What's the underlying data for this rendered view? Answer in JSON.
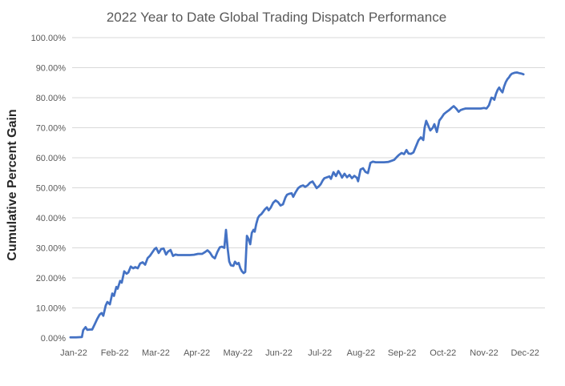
{
  "chart_data": {
    "type": "line",
    "title": "2022 Year to Date Global Trading Dispatch Performance",
    "ylabel": "Cumulative Percent Gain",
    "xlabel": "",
    "legend": "none",
    "grid": "horizontal-only",
    "ylim": [
      0,
      100
    ],
    "y_tick_labels": [
      "0.00%",
      "10.00%",
      "20.00%",
      "30.00%",
      "40.00%",
      "50.00%",
      "60.00%",
      "70.00%",
      "80.00%",
      "90.00%",
      "100.00%"
    ],
    "x_tick_labels": [
      "Jan-22",
      "Feb-22",
      "Mar-22",
      "Apr-22",
      "May-22",
      "Jun-22",
      "Jul-22",
      "Aug-22",
      "Sep-22",
      "Oct-22",
      "Nov-22",
      "Dec-22"
    ],
    "colors": {
      "line": "#4472C4",
      "gridline": "#D9D9D9",
      "tick_text": "#595959",
      "title_text": "#595959",
      "axis_title_text": "#262626",
      "background": "#ffffff"
    },
    "series": [
      {
        "name": "Cumulative Percent Gain",
        "x_unit": "months from Jan-22 tick",
        "y_unit": "percent",
        "points": [
          [
            -0.08,
            0.2
          ],
          [
            0.06,
            0.2
          ],
          [
            0.2,
            0.3
          ],
          [
            0.23,
            2.6
          ],
          [
            0.29,
            3.6
          ],
          [
            0.33,
            2.7
          ],
          [
            0.39,
            2.8
          ],
          [
            0.45,
            2.8
          ],
          [
            0.51,
            4.5
          ],
          [
            0.57,
            6.3
          ],
          [
            0.63,
            7.8
          ],
          [
            0.68,
            8.3
          ],
          [
            0.72,
            7.4
          ],
          [
            0.78,
            10.8
          ],
          [
            0.82,
            12.0
          ],
          [
            0.88,
            11.2
          ],
          [
            0.94,
            14.8
          ],
          [
            0.98,
            14.0
          ],
          [
            1.04,
            17.0
          ],
          [
            1.07,
            16.4
          ],
          [
            1.13,
            19.0
          ],
          [
            1.17,
            18.4
          ],
          [
            1.23,
            22.2
          ],
          [
            1.29,
            21.4
          ],
          [
            1.33,
            21.8
          ],
          [
            1.39,
            23.8
          ],
          [
            1.45,
            23.2
          ],
          [
            1.5,
            23.6
          ],
          [
            1.56,
            23.2
          ],
          [
            1.62,
            24.8
          ],
          [
            1.68,
            25.2
          ],
          [
            1.74,
            24.4
          ],
          [
            1.8,
            26.6
          ],
          [
            1.86,
            27.4
          ],
          [
            1.91,
            28.4
          ],
          [
            1.97,
            29.6
          ],
          [
            2.01,
            30.0
          ],
          [
            2.07,
            28.3
          ],
          [
            2.13,
            29.6
          ],
          [
            2.19,
            29.8
          ],
          [
            2.25,
            27.8
          ],
          [
            2.3,
            28.8
          ],
          [
            2.36,
            29.3
          ],
          [
            2.42,
            27.3
          ],
          [
            2.48,
            27.8
          ],
          [
            2.54,
            27.6
          ],
          [
            2.64,
            27.6
          ],
          [
            2.73,
            27.6
          ],
          [
            2.83,
            27.6
          ],
          [
            2.93,
            27.7
          ],
          [
            3.03,
            28.0
          ],
          [
            3.13,
            28.0
          ],
          [
            3.2,
            28.6
          ],
          [
            3.26,
            29.2
          ],
          [
            3.32,
            28.4
          ],
          [
            3.38,
            27.1
          ],
          [
            3.44,
            26.5
          ],
          [
            3.5,
            28.6
          ],
          [
            3.56,
            30.2
          ],
          [
            3.61,
            30.4
          ],
          [
            3.67,
            30.0
          ],
          [
            3.71,
            36.0
          ],
          [
            3.75,
            30.0
          ],
          [
            3.79,
            25.5
          ],
          [
            3.83,
            24.2
          ],
          [
            3.89,
            24.0
          ],
          [
            3.93,
            25.4
          ],
          [
            3.98,
            24.6
          ],
          [
            4.02,
            25.0
          ],
          [
            4.06,
            23.2
          ],
          [
            4.1,
            22.2
          ],
          [
            4.14,
            21.6
          ],
          [
            4.18,
            22.0
          ],
          [
            4.22,
            34.0
          ],
          [
            4.26,
            33.0
          ],
          [
            4.3,
            31.2
          ],
          [
            4.34,
            35.0
          ],
          [
            4.38,
            36.0
          ],
          [
            4.41,
            35.4
          ],
          [
            4.45,
            38.0
          ],
          [
            4.49,
            40.0
          ],
          [
            4.53,
            40.8
          ],
          [
            4.57,
            41.2
          ],
          [
            4.61,
            41.9
          ],
          [
            4.65,
            42.7
          ],
          [
            4.71,
            43.5
          ],
          [
            4.75,
            42.5
          ],
          [
            4.8,
            43.4
          ],
          [
            4.86,
            45.0
          ],
          [
            4.92,
            45.8
          ],
          [
            4.98,
            45.2
          ],
          [
            5.04,
            44.1
          ],
          [
            5.1,
            44.5
          ],
          [
            5.16,
            46.8
          ],
          [
            5.2,
            47.7
          ],
          [
            5.25,
            48.0
          ],
          [
            5.31,
            48.2
          ],
          [
            5.35,
            47.0
          ],
          [
            5.41,
            48.6
          ],
          [
            5.47,
            49.9
          ],
          [
            5.53,
            50.5
          ],
          [
            5.59,
            50.8
          ],
          [
            5.64,
            50.3
          ],
          [
            5.7,
            50.8
          ],
          [
            5.76,
            51.7
          ],
          [
            5.82,
            52.1
          ],
          [
            5.88,
            50.8
          ],
          [
            5.92,
            49.9
          ],
          [
            5.98,
            50.6
          ],
          [
            6.02,
            51.2
          ],
          [
            6.07,
            52.5
          ],
          [
            6.11,
            53.2
          ],
          [
            6.17,
            53.5
          ],
          [
            6.23,
            53.8
          ],
          [
            6.27,
            53.0
          ],
          [
            6.33,
            55.2
          ],
          [
            6.39,
            53.9
          ],
          [
            6.45,
            55.6
          ],
          [
            6.5,
            54.5
          ],
          [
            6.54,
            53.4
          ],
          [
            6.6,
            54.7
          ],
          [
            6.66,
            53.5
          ],
          [
            6.72,
            54.3
          ],
          [
            6.78,
            53.2
          ],
          [
            6.84,
            54.0
          ],
          [
            6.9,
            53.3
          ],
          [
            6.93,
            52.2
          ],
          [
            6.99,
            56.1
          ],
          [
            7.05,
            56.5
          ],
          [
            7.11,
            55.3
          ],
          [
            7.17,
            54.9
          ],
          [
            7.23,
            58.3
          ],
          [
            7.29,
            58.7
          ],
          [
            7.36,
            58.5
          ],
          [
            7.46,
            58.5
          ],
          [
            7.56,
            58.5
          ],
          [
            7.66,
            58.6
          ],
          [
            7.73,
            58.9
          ],
          [
            7.81,
            59.3
          ],
          [
            7.87,
            60.2
          ],
          [
            7.93,
            61.0
          ],
          [
            7.99,
            61.6
          ],
          [
            8.05,
            61.2
          ],
          [
            8.11,
            62.6
          ],
          [
            8.16,
            61.4
          ],
          [
            8.22,
            61.3
          ],
          [
            8.28,
            61.8
          ],
          [
            8.34,
            63.8
          ],
          [
            8.4,
            65.8
          ],
          [
            8.46,
            66.8
          ],
          [
            8.52,
            65.9
          ],
          [
            8.55,
            70.0
          ],
          [
            8.59,
            72.3
          ],
          [
            8.63,
            71.0
          ],
          [
            8.69,
            69.1
          ],
          [
            8.75,
            70.0
          ],
          [
            8.79,
            71.2
          ],
          [
            8.85,
            68.6
          ],
          [
            8.91,
            72.4
          ],
          [
            8.97,
            73.5
          ],
          [
            9.02,
            74.5
          ],
          [
            9.08,
            75.2
          ],
          [
            9.14,
            75.8
          ],
          [
            9.2,
            76.5
          ],
          [
            9.26,
            77.2
          ],
          [
            9.32,
            76.4
          ],
          [
            9.38,
            75.3
          ],
          [
            9.43,
            75.9
          ],
          [
            9.49,
            76.2
          ],
          [
            9.55,
            76.4
          ],
          [
            9.63,
            76.4
          ],
          [
            9.73,
            76.4
          ],
          [
            9.82,
            76.4
          ],
          [
            9.92,
            76.4
          ],
          [
            10.0,
            76.6
          ],
          [
            10.06,
            76.4
          ],
          [
            10.12,
            77.5
          ],
          [
            10.18,
            80.0
          ],
          [
            10.21,
            79.9
          ],
          [
            10.25,
            79.3
          ],
          [
            10.29,
            81.2
          ],
          [
            10.33,
            82.6
          ],
          [
            10.37,
            83.4
          ],
          [
            10.41,
            82.4
          ],
          [
            10.45,
            81.8
          ],
          [
            10.49,
            83.8
          ],
          [
            10.53,
            85.2
          ],
          [
            10.57,
            86.2
          ],
          [
            10.61,
            86.8
          ],
          [
            10.64,
            87.5
          ],
          [
            10.68,
            88.0
          ],
          [
            10.74,
            88.3
          ],
          [
            10.8,
            88.4
          ],
          [
            10.86,
            88.2
          ],
          [
            10.92,
            88.0
          ],
          [
            10.96,
            87.8
          ]
        ]
      }
    ]
  }
}
